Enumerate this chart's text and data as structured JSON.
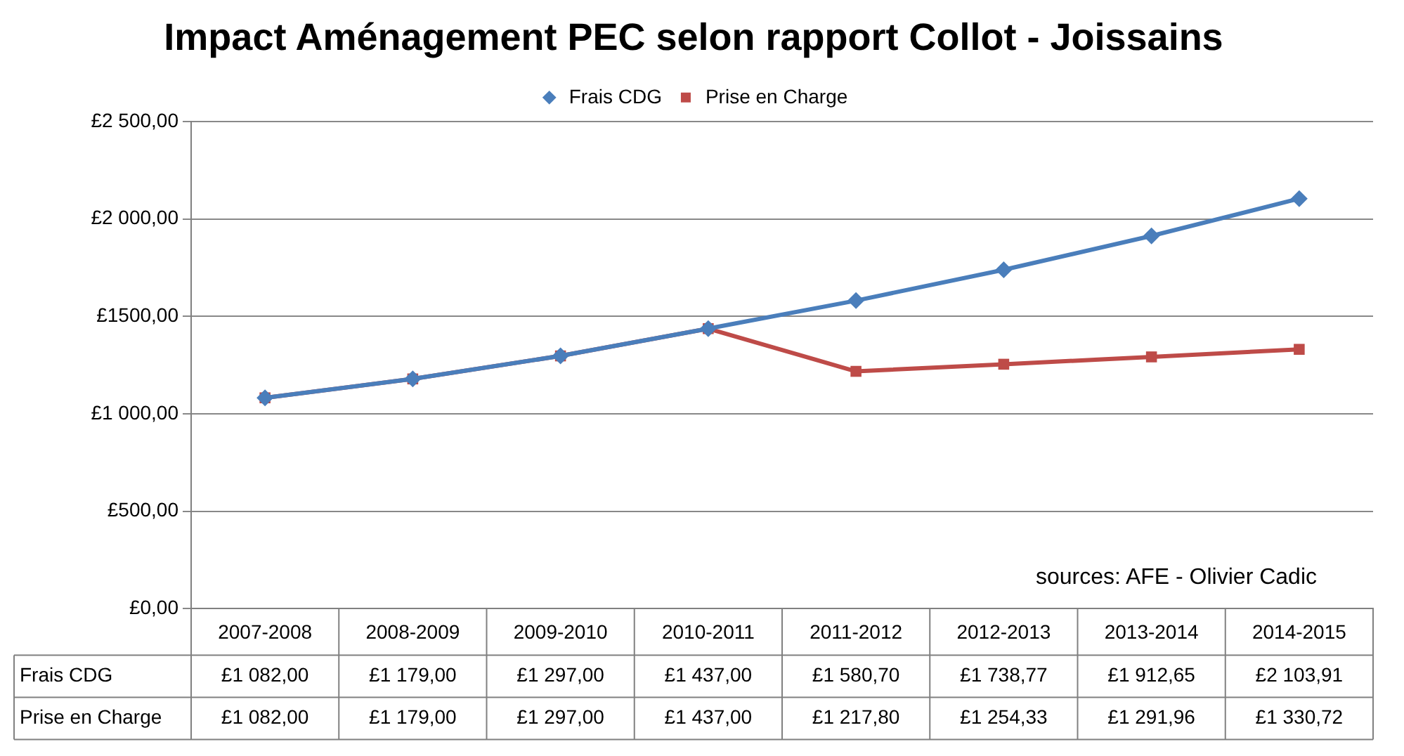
{
  "chart_data": {
    "type": "line",
    "title": "Impact Aménagement PEC selon rapport Collot - Joissains",
    "categories": [
      "2007-2008",
      "2008-2009",
      "2009-2010",
      "2010-2011",
      "2011-2012",
      "2012-2013",
      "2013-2014",
      "2014-2015"
    ],
    "series": [
      {
        "name": "Frais CDG",
        "color": "#4a7ebb",
        "marker": "diamond",
        "values": [
          1082.0,
          1179.0,
          1297.0,
          1437.0,
          1580.7,
          1738.77,
          1912.65,
          2103.91
        ],
        "value_labels": [
          "£1 082,00",
          "£1 179,00",
          "£1 297,00",
          "£1 437,00",
          "£1 580,70",
          "£1 738,77",
          "£1 912,65",
          "£2 103,91"
        ]
      },
      {
        "name": "Prise en Charge",
        "color": "#be4b48",
        "marker": "square",
        "values": [
          1082.0,
          1179.0,
          1297.0,
          1437.0,
          1217.8,
          1254.33,
          1291.96,
          1330.72
        ],
        "value_labels": [
          "£1 082,00",
          "£1 179,00",
          "£1 297,00",
          "£1 437,00",
          "£1 217,80",
          "£1 254,33",
          "£1 291,96",
          "£1 330,72"
        ]
      }
    ],
    "ylim": [
      0,
      2500
    ],
    "yticks": [
      {
        "value": 0,
        "label": "£0,00"
      },
      {
        "value": 500,
        "label": "£500,00"
      },
      {
        "value": 1000,
        "label": "£1 000,00"
      },
      {
        "value": 1500,
        "label": "£1500,00"
      },
      {
        "value": 2000,
        "label": "£2 000,00"
      },
      {
        "value": 2500,
        "label": "£2 500,00"
      }
    ],
    "grid": "y",
    "legend": "top",
    "line_style": "solid",
    "annotations": [
      "sources: AFE - Olivier Cadic"
    ]
  }
}
